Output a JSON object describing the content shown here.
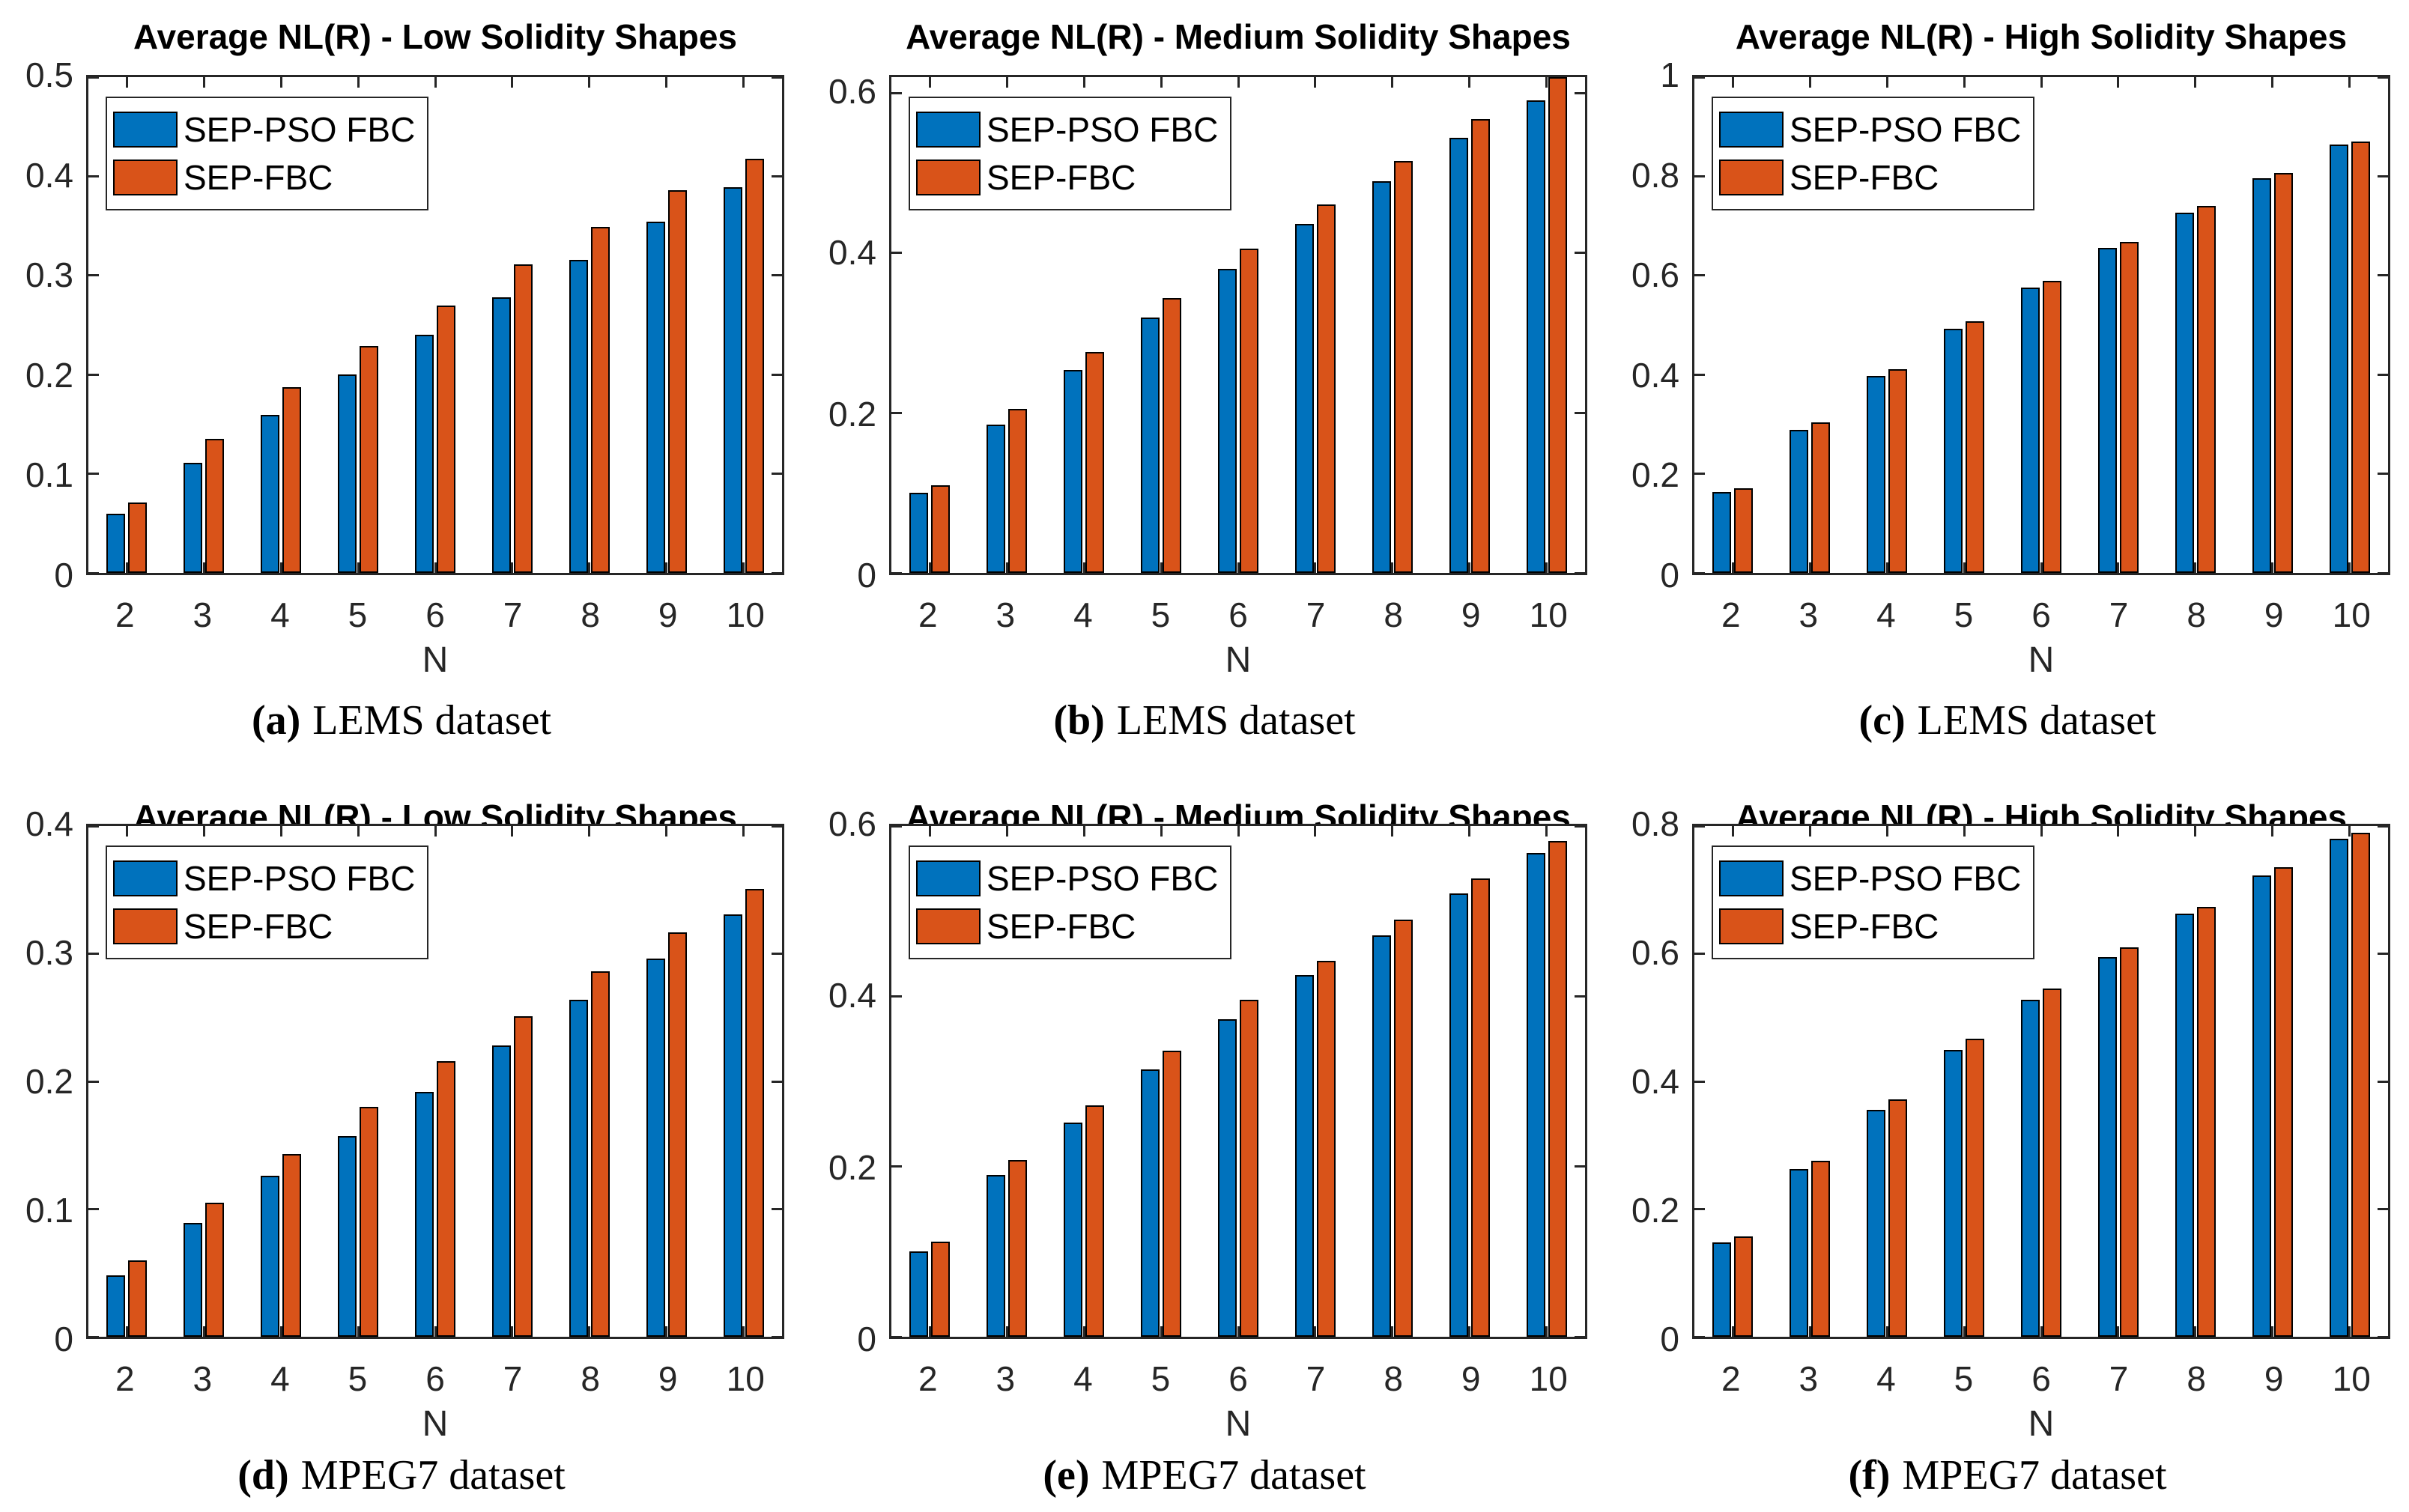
{
  "figure": {
    "background": "#ffffff",
    "axes_color": "#262626",
    "bar_edge_color": "#000000"
  },
  "legend": {
    "position": "top-left",
    "items": [
      {
        "label": "SEP-PSO FBC",
        "color": "#0072BD"
      },
      {
        "label": "SEP-FBC",
        "color": "#D95319"
      }
    ]
  },
  "chart_data": [
    {
      "id": "a",
      "type": "bar",
      "title": "Average NL(R) - Low Solidity Shapes",
      "xlabel": "N",
      "categories": [
        2,
        3,
        4,
        5,
        6,
        7,
        8,
        9,
        10
      ],
      "series": [
        {
          "name": "SEP-PSO FBC",
          "color": "#0072BD",
          "values": [
            0.06,
            0.111,
            0.159,
            0.2,
            0.24,
            0.278,
            0.316,
            0.354,
            0.389
          ]
        },
        {
          "name": "SEP-FBC",
          "color": "#D95319",
          "values": [
            0.071,
            0.135,
            0.187,
            0.229,
            0.27,
            0.311,
            0.349,
            0.386,
            0.418
          ]
        }
      ],
      "ylim": [
        0,
        0.5
      ],
      "yticks": [
        0,
        0.1,
        0.2,
        0.3,
        0.4,
        0.5
      ],
      "grid": false,
      "legend_position": "top-left",
      "caption_letter": "(a)",
      "caption_text": "LEMS dataset"
    },
    {
      "id": "b",
      "type": "bar",
      "title": "Average NL(R) - Medium Solidity Shapes",
      "xlabel": "N",
      "categories": [
        2,
        3,
        4,
        5,
        6,
        7,
        8,
        9,
        10
      ],
      "series": [
        {
          "name": "SEP-PSO FBC",
          "color": "#0072BD",
          "values": [
            0.1,
            0.185,
            0.254,
            0.319,
            0.38,
            0.436,
            0.49,
            0.544,
            0.591
          ]
        },
        {
          "name": "SEP-FBC",
          "color": "#D95319",
          "values": [
            0.11,
            0.205,
            0.276,
            0.344,
            0.406,
            0.461,
            0.515,
            0.568,
            0.62
          ]
        }
      ],
      "ylim": [
        0,
        0.62
      ],
      "yticks": [
        0,
        0.2,
        0.4,
        0.6
      ],
      "grid": false,
      "legend_position": "top-left",
      "caption_letter": "(b)",
      "caption_text": "LEMS dataset"
    },
    {
      "id": "c",
      "type": "bar",
      "title": "Average NL(R) - High Solidity Shapes",
      "xlabel": "N",
      "categories": [
        2,
        3,
        4,
        5,
        6,
        7,
        8,
        9,
        10
      ],
      "series": [
        {
          "name": "SEP-PSO FBC",
          "color": "#0072BD",
          "values": [
            0.163,
            0.288,
            0.397,
            0.493,
            0.575,
            0.655,
            0.727,
            0.796,
            0.864
          ]
        },
        {
          "name": "SEP-FBC",
          "color": "#D95319",
          "values": [
            0.17,
            0.303,
            0.411,
            0.508,
            0.589,
            0.667,
            0.74,
            0.806,
            0.87
          ]
        }
      ],
      "ylim": [
        0,
        1
      ],
      "yticks": [
        0,
        0.2,
        0.4,
        0.6,
        0.8,
        1
      ],
      "grid": false,
      "legend_position": "top-left",
      "caption_letter": "(c)",
      "caption_text": "LEMS dataset"
    },
    {
      "id": "d",
      "type": "bar",
      "title": "Average NL(R) - Low Solidity Shapes",
      "xlabel": "N",
      "categories": [
        2,
        3,
        4,
        5,
        6,
        7,
        8,
        9,
        10
      ],
      "series": [
        {
          "name": "SEP-PSO FBC",
          "color": "#0072BD",
          "values": [
            0.048,
            0.089,
            0.126,
            0.157,
            0.192,
            0.228,
            0.264,
            0.296,
            0.331
          ]
        },
        {
          "name": "SEP-FBC",
          "color": "#D95319",
          "values": [
            0.06,
            0.105,
            0.143,
            0.18,
            0.216,
            0.251,
            0.286,
            0.317,
            0.351
          ]
        }
      ],
      "ylim": [
        0,
        0.4
      ],
      "yticks": [
        0,
        0.1,
        0.2,
        0.3,
        0.4
      ],
      "grid": false,
      "legend_position": "top-left",
      "caption_letter": "(d)",
      "caption_text": "MPEG7 dataset"
    },
    {
      "id": "e",
      "type": "bar",
      "title": "Average NL(R) - Medium Solidity Shapes",
      "xlabel": "N",
      "categories": [
        2,
        3,
        4,
        5,
        6,
        7,
        8,
        9,
        10
      ],
      "series": [
        {
          "name": "SEP-PSO FBC",
          "color": "#0072BD",
          "values": [
            0.1,
            0.19,
            0.252,
            0.314,
            0.373,
            0.425,
            0.472,
            0.521,
            0.568
          ]
        },
        {
          "name": "SEP-FBC",
          "color": "#D95319",
          "values": [
            0.112,
            0.208,
            0.272,
            0.336,
            0.396,
            0.442,
            0.49,
            0.538,
            0.582
          ]
        }
      ],
      "ylim": [
        0,
        0.6
      ],
      "yticks": [
        0,
        0.2,
        0.4,
        0.6
      ],
      "grid": false,
      "legend_position": "top-left",
      "caption_letter": "(e)",
      "caption_text": "MPEG7 dataset"
    },
    {
      "id": "f",
      "type": "bar",
      "title": "Average NL(R) - High Solidity Shapes",
      "xlabel": "N",
      "categories": [
        2,
        3,
        4,
        5,
        6,
        7,
        8,
        9,
        10
      ],
      "series": [
        {
          "name": "SEP-PSO FBC",
          "color": "#0072BD",
          "values": [
            0.148,
            0.263,
            0.356,
            0.449,
            0.528,
            0.595,
            0.663,
            0.723,
            0.78
          ]
        },
        {
          "name": "SEP-FBC",
          "color": "#D95319",
          "values": [
            0.157,
            0.276,
            0.372,
            0.467,
            0.546,
            0.61,
            0.673,
            0.735,
            0.789
          ]
        }
      ],
      "ylim": [
        0,
        0.8
      ],
      "yticks": [
        0,
        0.2,
        0.4,
        0.6,
        0.8
      ],
      "grid": false,
      "legend_position": "top-left",
      "caption_letter": "(f)",
      "caption_text": "MPEG7 dataset"
    }
  ]
}
